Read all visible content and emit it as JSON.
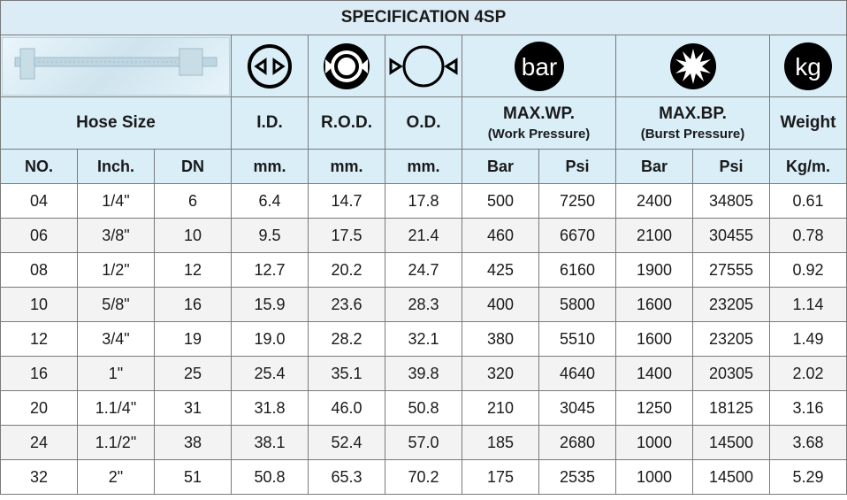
{
  "title": "SPECIFICATION 4SP",
  "icons": {
    "caliper": "caliper-image",
    "id": "inner-diameter-icon",
    "rod": "reinforcement-od-icon",
    "od": "outer-diameter-icon",
    "bar_label": "bar",
    "bar": "pressure-gauge-icon",
    "burst": "burst-star-icon",
    "kg_label": "kg",
    "kg": "weight-icon"
  },
  "labels": {
    "hose_size": "Hose Size",
    "id": "I.D.",
    "rod": "R.O.D.",
    "od": "O.D.",
    "max_wp": "MAX.WP.",
    "work_pressure": "(Work Pressure)",
    "max_bp": "MAX.BP.",
    "burst_pressure": "(Burst Pressure)",
    "weight": "Weight"
  },
  "units": [
    "NO.",
    "Inch.",
    "DN",
    "mm.",
    "mm.",
    "mm.",
    "Bar",
    "Psi",
    "Bar",
    "Psi",
    "Kg/m."
  ],
  "rows": [
    [
      "04",
      "1/4\"",
      "6",
      "6.4",
      "14.7",
      "17.8",
      "500",
      "7250",
      "2400",
      "34805",
      "0.61"
    ],
    [
      "06",
      "3/8\"",
      "10",
      "9.5",
      "17.5",
      "21.4",
      "460",
      "6670",
      "2100",
      "30455",
      "0.78"
    ],
    [
      "08",
      "1/2\"",
      "12",
      "12.7",
      "20.2",
      "24.7",
      "425",
      "6160",
      "1900",
      "27555",
      "0.92"
    ],
    [
      "10",
      "5/8\"",
      "16",
      "15.9",
      "23.6",
      "28.3",
      "400",
      "5800",
      "1600",
      "23205",
      "1.14"
    ],
    [
      "12",
      "3/4\"",
      "19",
      "19.0",
      "28.2",
      "32.1",
      "380",
      "5510",
      "1600",
      "23205",
      "1.49"
    ],
    [
      "16",
      "1\"",
      "25",
      "25.4",
      "35.1",
      "39.8",
      "320",
      "4640",
      "1400",
      "20305",
      "2.02"
    ],
    [
      "20",
      "1.1/4\"",
      "31",
      "31.8",
      "46.0",
      "50.8",
      "210",
      "3045",
      "1250",
      "18125",
      "3.16"
    ],
    [
      "24",
      "1.1/2\"",
      "38",
      "38.1",
      "52.4",
      "57.0",
      "185",
      "2680",
      "1000",
      "14500",
      "3.68"
    ],
    [
      "32",
      "2\"",
      "51",
      "50.8",
      "65.3",
      "70.2",
      "175",
      "2535",
      "1000",
      "14500",
      "5.29"
    ]
  ]
}
